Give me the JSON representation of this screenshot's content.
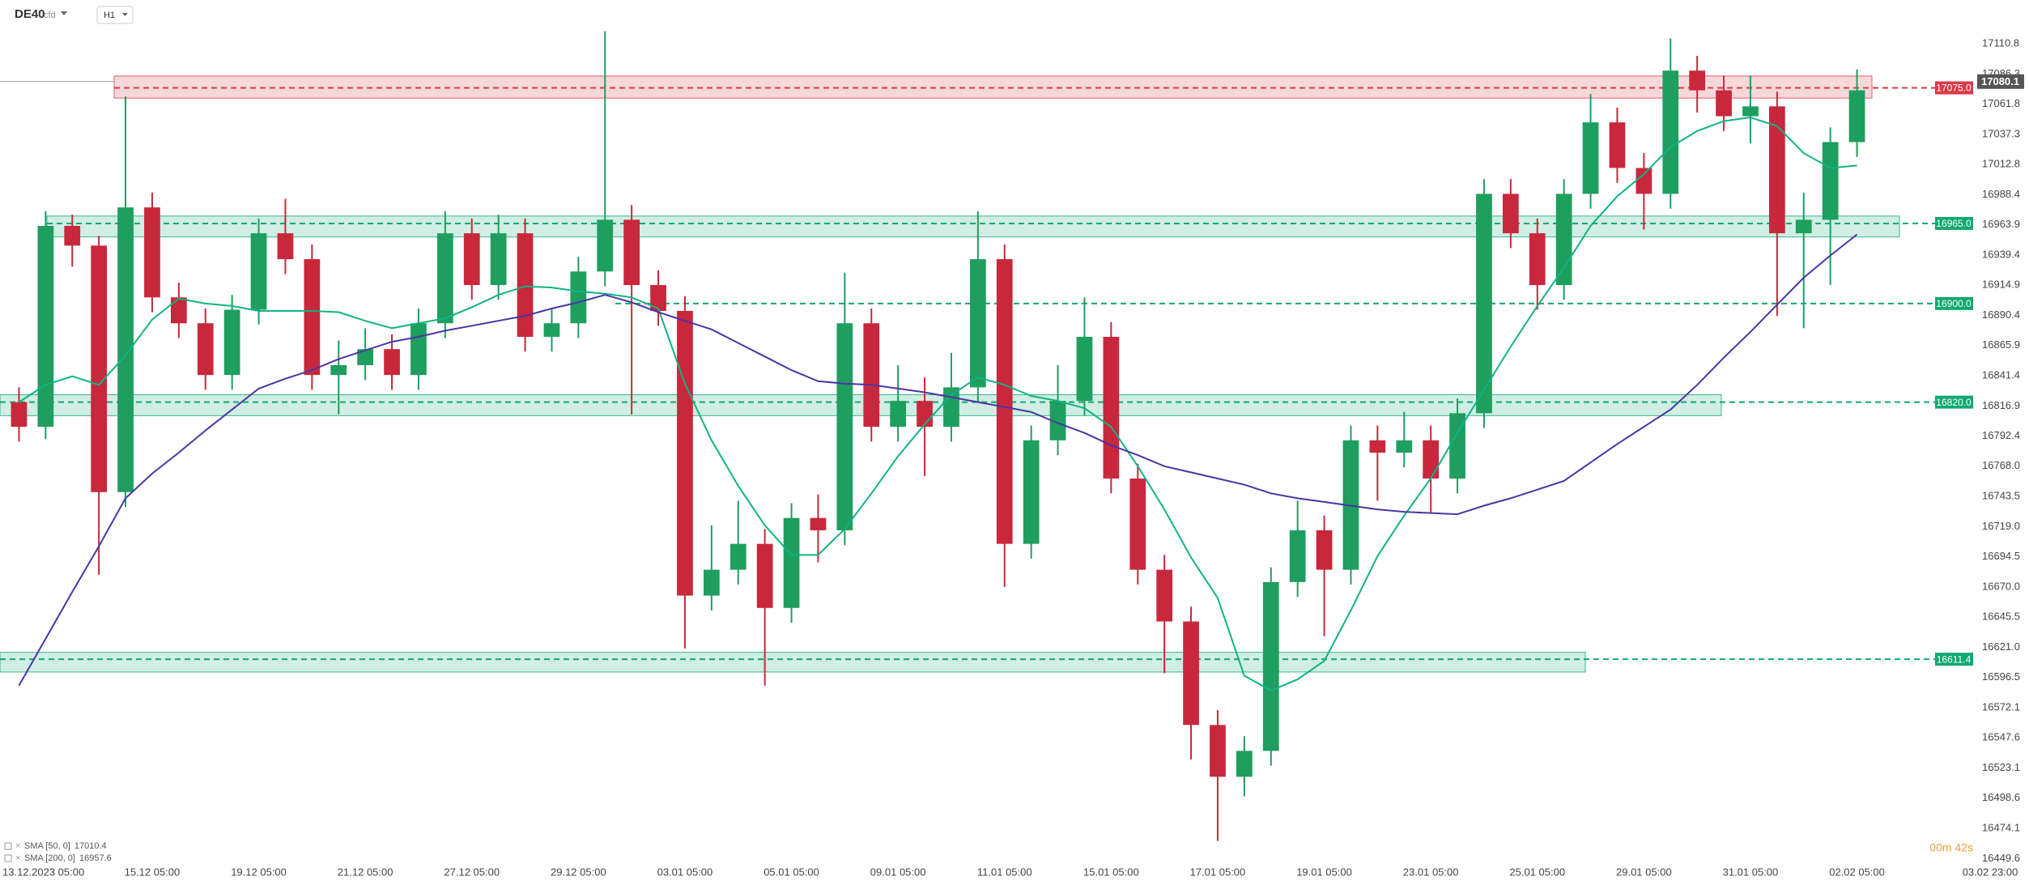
{
  "chart_data": {
    "type": "candlestick",
    "symbol": "DE40",
    "instrument_type": "cfd",
    "timeframe": "H1",
    "timer": "00m 42s",
    "categories": [
      null,
      "13.12.2023 05:00",
      null,
      null,
      null,
      "15.12 05:00",
      null,
      null,
      null,
      "19.12 05:00",
      null,
      null,
      null,
      "21.12 05:00",
      null,
      null,
      null,
      "27.12 05:00",
      null,
      null,
      null,
      "29.12 05:00",
      null,
      null,
      null,
      "03.01 05:00",
      null,
      null,
      null,
      "05.01 05:00",
      null,
      null,
      null,
      "09.01 05:00",
      null,
      null,
      null,
      "11.01 05:00",
      null,
      null,
      null,
      "15.01 05:00",
      null,
      null,
      null,
      "17.01 05:00",
      null,
      null,
      null,
      "19.01 05:00",
      null,
      null,
      null,
      "23.01 05:00",
      null,
      null,
      null,
      "25.01 05:00",
      null,
      null,
      null,
      "29.01 05:00",
      null,
      null,
      null,
      "31.01 05:00",
      null,
      null,
      null,
      "02.02 05:00",
      null,
      null,
      null,
      null,
      "03.02 23:00"
    ],
    "open": [
      16820,
      16800,
      16963,
      16947,
      16747,
      16978,
      16905,
      16884,
      16842,
      16895,
      16957,
      16936,
      16842,
      16850,
      16863,
      16842,
      16884,
      16957,
      16915,
      16957,
      16873,
      16884,
      16926,
      16968,
      16915,
      16894,
      16663,
      16684,
      16705,
      16653,
      16726,
      16716,
      16884,
      16800,
      16821,
      16800,
      16832,
      16936,
      16705,
      16789,
      16821,
      16873,
      16758,
      16684,
      16642,
      16558,
      16516,
      16537,
      16674,
      16716,
      16684,
      16789,
      16779,
      16789,
      16758,
      16811,
      16989,
      16957,
      16915,
      16989,
      17047,
      17010,
      16989,
      17089,
      17073,
      17052,
      17060,
      16957,
      16968,
      17031,
      null,
      null,
      null,
      null,
      null
    ],
    "high": [
      16832,
      16975,
      16972,
      16955,
      17068,
      16990,
      16917,
      16896,
      16907,
      16969,
      16985,
      16948,
      16870,
      16880,
      16875,
      16896,
      16975,
      16969,
      16972,
      16969,
      16896,
      16938,
      17121,
      16980,
      16927,
      16906,
      16720,
      16740,
      16717,
      16738,
      16745,
      16925,
      16896,
      16850,
      16840,
      16860,
      16975,
      16948,
      16801,
      16850,
      16905,
      16885,
      16770,
      16696,
      16654,
      16570,
      16549,
      16686,
      16740,
      16728,
      16801,
      16801,
      16812,
      16801,
      16823,
      17001,
      17001,
      16969,
      17001,
      17070,
      17059,
      17022,
      17115,
      17101,
      17085,
      17085,
      17072,
      16990,
      17043,
      17090,
      null,
      null,
      null,
      null,
      null
    ],
    "low": [
      16788,
      16790,
      16930,
      16680,
      16735,
      16893,
      16872,
      16830,
      16830,
      16883,
      16924,
      16830,
      16810,
      16838,
      16830,
      16830,
      16872,
      16903,
      16903,
      16861,
      16861,
      16872,
      16914,
      16810,
      16882,
      16620,
      16651,
      16672,
      16590,
      16641,
      16690,
      16704,
      16788,
      16788,
      16760,
      16788,
      16820,
      16670,
      16693,
      16777,
      16809,
      16746,
      16672,
      16600,
      16530,
      16464,
      16500,
      16525,
      16662,
      16630,
      16672,
      16740,
      16767,
      16730,
      16746,
      16799,
      16945,
      16895,
      16903,
      16977,
      16998,
      16960,
      16977,
      17055,
      17040,
      17030,
      16890,
      16880,
      16915,
      17019,
      null,
      null,
      null,
      null,
      null
    ],
    "close": [
      16800,
      16963,
      16947,
      16747,
      16978,
      16905,
      16884,
      16842,
      16895,
      16957,
      16936,
      16842,
      16850,
      16863,
      16842,
      16884,
      16957,
      16915,
      16957,
      16873,
      16884,
      16926,
      16968,
      16915,
      16894,
      16663,
      16684,
      16705,
      16653,
      16726,
      16716,
      16884,
      16800,
      16821,
      16800,
      16832,
      16936,
      16705,
      16789,
      16821,
      16873,
      16758,
      16684,
      16642,
      16558,
      16516,
      16537,
      16674,
      16716,
      16684,
      16789,
      16779,
      16789,
      16758,
      16811,
      16989,
      16957,
      16915,
      16989,
      17047,
      17010,
      16989,
      17089,
      17073,
      17052,
      17060,
      16957,
      16968,
      17031,
      17073,
      null,
      null,
      null,
      null,
      null
    ],
    "up_color": "#1e9e5f",
    "down_color": "#c8283c",
    "overlays": [
      {
        "name": "SMA [50, 0]",
        "legend_value": 17010.4,
        "color": "#10b384",
        "values": [
          16820,
          16834,
          16841,
          16834,
          16858,
          16887,
          16904,
          16900,
          16898,
          16894,
          16894,
          16894,
          16893,
          16886,
          16880,
          16884,
          16888,
          16897,
          16907,
          16914,
          16913,
          16910,
          16908,
          16905,
          16896,
          16835,
          16789,
          16752,
          16720,
          16696,
          16696,
          16717,
          16746,
          16776,
          16802,
          16826,
          16840,
          16834,
          16825,
          16821,
          16815,
          16800,
          16768,
          16733,
          16694,
          16661,
          16598,
          16586,
          16595,
          16610,
          16651,
          16695,
          16728,
          16758,
          16795,
          16830,
          16865,
          16898,
          16929,
          16963,
          16987,
          17005,
          17027,
          17040,
          17048,
          17051,
          17044,
          17022,
          17010,
          17012,
          null,
          null,
          null,
          null,
          null
        ]
      },
      {
        "name": "SMA [200, 0]",
        "legend_value": 16957.6,
        "color": "#4b35a6",
        "values": [
          16590,
          16628,
          16666,
          16703,
          16742,
          16762,
          16779,
          16797,
          16814,
          16831,
          16839,
          16846,
          16855,
          16862,
          16869,
          16873,
          16878,
          16882,
          16886,
          16890,
          16896,
          16901,
          16907,
          16901,
          16893,
          16886,
          16879,
          16868,
          16857,
          16846,
          16837,
          16835,
          16834,
          16831,
          16828,
          16824,
          16820,
          16816,
          16812,
          16803,
          16795,
          16785,
          16777,
          16768,
          16763,
          16758,
          16753,
          16746,
          16742,
          16739,
          16736,
          16733,
          16731,
          16730,
          16729,
          16736,
          16742,
          16749,
          16756,
          16771,
          16786,
          16800,
          16814,
          16834,
          16856,
          16877,
          16899,
          16921,
          16939,
          16956,
          null,
          null,
          null,
          null,
          null
        ]
      }
    ],
    "levels": [
      {
        "value": 17075,
        "label": "17075.0",
        "color": "#d93a48",
        "zone": {
          "low": 17066.7,
          "high": 17084.6
        }
      },
      {
        "value": 16965,
        "label": "16965.0",
        "color": "#12a872",
        "zone": {
          "low": 16954,
          "high": 16971
        }
      },
      {
        "value": 16900,
        "label": "16900.0",
        "color": "#12a872"
      },
      {
        "value": 16820,
        "label": "16820.0",
        "color": "#12a872",
        "zone": {
          "low": 16809,
          "high": 16826
        }
      },
      {
        "value": 16611.4,
        "color": "#12a872",
        "zone": {
          "low": 16601,
          "high": 16617
        }
      }
    ],
    "last_price": 17080.1,
    "ylim": [
      16444.6,
      17146.3
    ],
    "yticks": [
      17110.8,
      17086.3,
      17061.8,
      17037.3,
      17012.8,
      16988.4,
      16963.9,
      16939.4,
      16914.9,
      16890.4,
      16865.9,
      16841.4,
      16816.9,
      16792.4,
      {
        "value": 16768,
        "label": "16768.0"
      },
      16743.5,
      {
        "value": 16719,
        "label": "16719.0"
      },
      16694.5,
      {
        "value": 16670,
        "label": "16670.0"
      },
      16645.5,
      {
        "value": 16621,
        "label": "16621.0"
      },
      16596.5,
      16572.1,
      16547.6,
      16523.1,
      16498.6,
      16474.1,
      16449.6
    ]
  }
}
